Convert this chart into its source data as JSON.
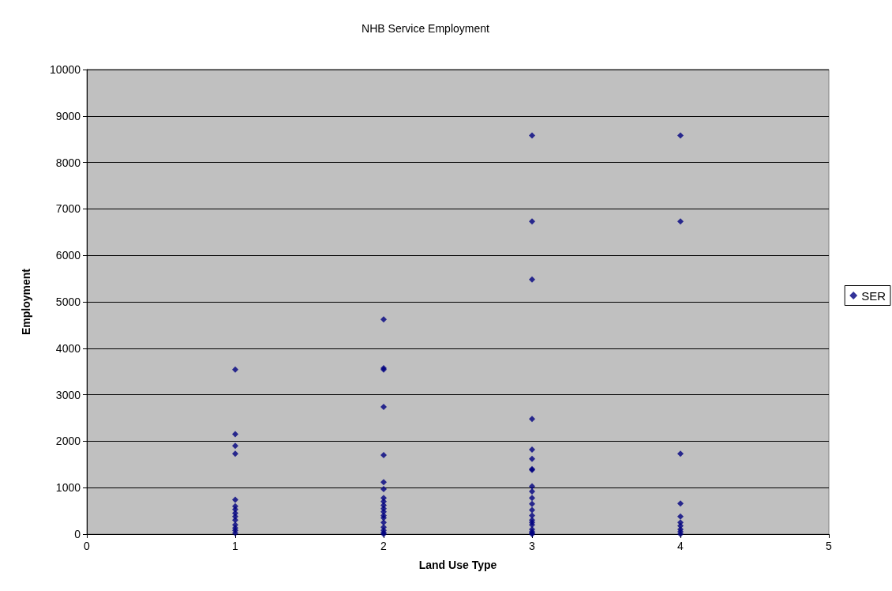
{
  "chart_data": {
    "type": "scatter",
    "title": "NHB Service Employment",
    "xlabel": "Land Use Type",
    "ylabel": "Employment",
    "series": [
      {
        "name": "SER",
        "color": "#000080",
        "x": [
          1,
          1,
          1,
          1,
          1,
          1,
          1,
          1,
          1,
          1,
          1,
          1,
          1,
          1,
          2,
          2,
          2,
          2,
          2,
          2,
          2,
          2,
          2,
          2,
          2,
          2,
          2,
          2,
          2,
          2,
          2,
          2,
          2,
          3,
          3,
          3,
          3,
          3,
          3,
          3,
          3,
          3,
          3,
          3,
          3,
          3,
          3,
          3,
          3,
          3,
          3,
          3,
          3,
          3,
          4,
          4,
          4,
          4,
          4,
          4,
          4,
          4,
          4,
          4
        ],
        "values": [
          3540,
          2150,
          1900,
          1730,
          740,
          600,
          530,
          450,
          380,
          300,
          200,
          130,
          80,
          20,
          4620,
          3570,
          3540,
          2740,
          1700,
          1120,
          970,
          780,
          700,
          620,
          550,
          480,
          400,
          350,
          250,
          150,
          80,
          30,
          0,
          8580,
          6730,
          5480,
          2480,
          1820,
          1620,
          1400,
          1380,
          1030,
          920,
          780,
          650,
          520,
          400,
          300,
          250,
          200,
          100,
          50,
          20,
          0,
          8580,
          6730,
          1730,
          660,
          380,
          250,
          180,
          100,
          50,
          0
        ]
      }
    ],
    "xlim": [
      0,
      5
    ],
    "xticks": [
      0,
      1,
      2,
      3,
      4,
      5
    ],
    "ylim": [
      0,
      10000
    ],
    "yticks": [
      0,
      1000,
      2000,
      3000,
      4000,
      5000,
      6000,
      7000,
      8000,
      9000,
      10000
    ],
    "grid": "y",
    "legend": "right",
    "marker": "diamond"
  }
}
